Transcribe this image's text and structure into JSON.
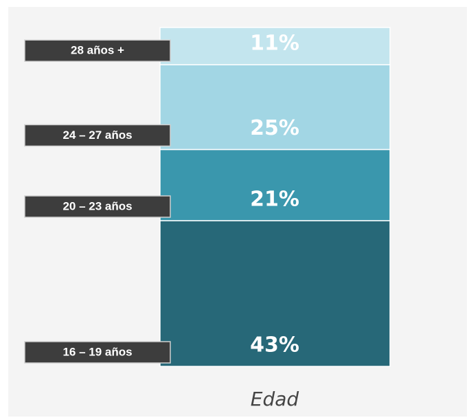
{
  "chart_data": {
    "type": "stacked_column",
    "xlabel": "Edad",
    "categories": [
      "16 – 19 años",
      "20 – 23 años",
      "24 – 27 años",
      "28 años +"
    ],
    "values": [
      43,
      21,
      25,
      11
    ],
    "value_labels": [
      "43%",
      "21%",
      "25%",
      "11%"
    ],
    "colors": [
      "#276878",
      "#3a97ad",
      "#a2d6e4",
      "#c3e5ee"
    ]
  }
}
